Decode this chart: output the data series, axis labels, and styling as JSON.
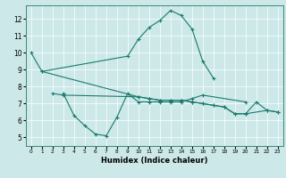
{
  "xlabel": "Humidex (Indice chaleur)",
  "bg_color": "#cce8e8",
  "line_color": "#1a7a6e",
  "xlim": [
    -0.5,
    23.5
  ],
  "ylim": [
    4.5,
    12.8
  ],
  "yticks": [
    5,
    6,
    7,
    8,
    9,
    10,
    11,
    12
  ],
  "xticks": [
    0,
    1,
    2,
    3,
    4,
    5,
    6,
    7,
    8,
    9,
    10,
    11,
    12,
    13,
    14,
    15,
    16,
    17,
    18,
    19,
    20,
    21,
    22,
    23
  ],
  "line1_x": [
    0,
    1,
    9,
    10,
    11,
    12,
    13,
    14,
    15,
    16,
    17
  ],
  "line1_y": [
    10.0,
    8.9,
    9.8,
    10.8,
    11.5,
    11.9,
    12.5,
    12.2,
    11.4,
    9.5,
    8.5
  ],
  "line2_x": [
    3,
    4,
    5,
    6,
    7,
    8,
    9,
    10,
    11,
    12,
    13,
    14,
    15,
    16,
    20
  ],
  "line2_y": [
    7.6,
    6.3,
    5.7,
    5.2,
    5.1,
    6.2,
    7.6,
    7.1,
    7.1,
    7.1,
    7.1,
    7.1,
    7.3,
    7.5,
    7.1
  ],
  "line3_x": [
    2,
    3,
    10,
    11,
    12,
    13,
    14,
    15,
    16,
    17,
    18,
    19,
    20,
    21,
    22,
    23
  ],
  "line3_y": [
    7.6,
    7.5,
    7.4,
    7.3,
    7.2,
    7.2,
    7.2,
    7.1,
    7.0,
    6.9,
    6.8,
    6.4,
    6.4,
    7.1,
    6.6,
    6.5
  ],
  "line4_x": [
    1,
    10,
    11,
    12,
    13,
    14,
    15,
    16,
    17,
    18,
    19,
    20,
    22,
    23
  ],
  "line4_y": [
    8.9,
    7.4,
    7.3,
    7.2,
    7.2,
    7.2,
    7.1,
    7.0,
    6.9,
    6.8,
    6.4,
    6.4,
    6.6,
    6.5
  ]
}
